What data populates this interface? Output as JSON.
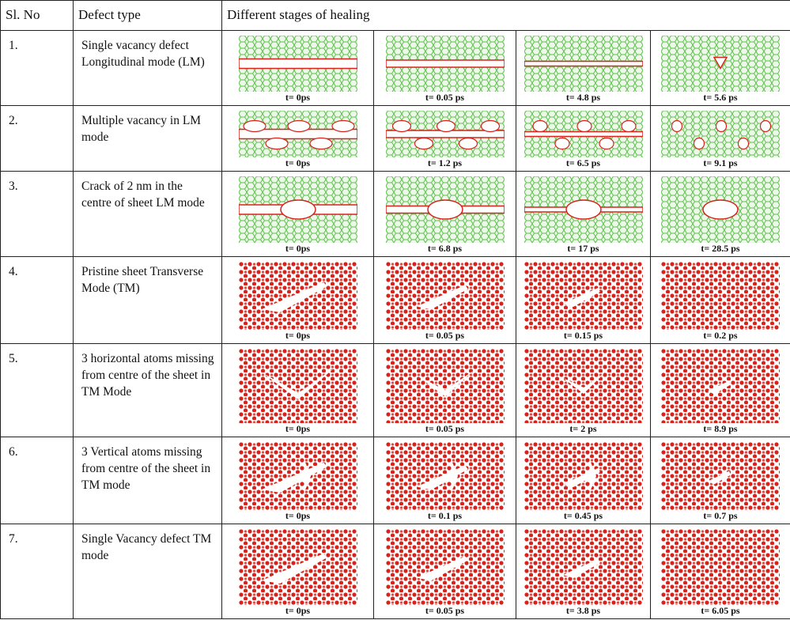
{
  "header": [
    "Sl. No",
    "Defect type",
    "Different stages of healing"
  ],
  "rows": [
    {
      "number": "1.",
      "defect": "Single vacancy defect Longitudinal mode (LM)",
      "stages": [
        "t= 0ps",
        "t= 0.05 ps",
        "t= 4.8 ps",
        "t= 5.6 ps"
      ]
    },
    {
      "number": "2.",
      "defect": "Multiple vacancy in LM mode",
      "stages": [
        "t= 0ps",
        "t= 1.2 ps",
        "t= 6.5 ps",
        "t= 9.1 ps"
      ]
    },
    {
      "number": "3.",
      "defect": "Crack of 2 nm in the centre of sheet LM mode",
      "stages": [
        "t= 0ps",
        "t= 6.8 ps",
        "t= 17 ps",
        "t= 28.5 ps"
      ]
    },
    {
      "number": "4.",
      "defect": "Pristine sheet Transverse Mode (TM)",
      "stages": [
        "t= 0ps",
        "t= 0.05 ps",
        "t= 0.15 ps",
        "t= 0.2 ps"
      ]
    },
    {
      "number": "5.",
      "defect": "3 horizontal atoms missing from centre of the sheet in TM Mode",
      "stages": [
        "t= 0ps",
        "t= 0.05 ps",
        "t= 2 ps",
        "t= 8.9 ps"
      ]
    },
    {
      "number": "6.",
      "defect": "3 Vertical atoms missing from centre of the sheet in TM mode",
      "stages": [
        "t= 0ps",
        "t= 0.1 ps",
        "t= 0.45 ps",
        "t= 0.7 ps"
      ]
    },
    {
      "number": "7.",
      "defect": "Single Vacancy defect TM mode",
      "stages": [
        "t= 0ps",
        "t= 0.05 ps",
        "t= 3.8 ps",
        "t= 6.05 ps"
      ]
    }
  ]
}
